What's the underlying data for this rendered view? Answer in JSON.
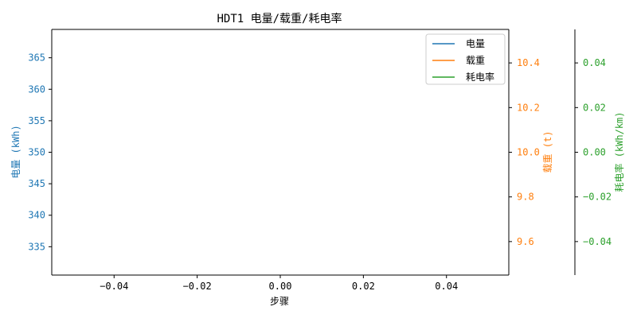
{
  "colors": {
    "c1": "#1f77b4",
    "c2": "#ff7f0e",
    "c3": "#2ca02c",
    "axis": "#000000"
  },
  "chart_data": {
    "type": "line",
    "title": "HDT1 电量/载重/耗电率",
    "xlabel": "步骤",
    "xlim": [
      -0.055,
      0.055
    ],
    "xticks": [
      "−0.04",
      "−0.02",
      "0.00",
      "0.02",
      "0.04"
    ],
    "axes": [
      {
        "ylabel": "电量 (kWh)",
        "ylim": [
          330.5,
          369.5
        ],
        "yticks": [
          "335",
          "340",
          "345",
          "350",
          "355",
          "360",
          "365"
        ],
        "color": "#1f77b4"
      },
      {
        "ylabel": "载重 (t)",
        "ylim": [
          9.45,
          10.55
        ],
        "yticks": [
          "9.6",
          "9.8",
          "10.0",
          "10.2",
          "10.4"
        ],
        "color": "#ff7f0e"
      },
      {
        "ylabel": "耗电率 (kWh/km)",
        "ylim": [
          -0.055,
          0.055
        ],
        "yticks": [
          "−0.04",
          "−0.02",
          "0.00",
          "0.02",
          "0.04"
        ],
        "color": "#2ca02c"
      }
    ],
    "series": [
      {
        "name": "电量",
        "color": "#1f77b4",
        "x": [],
        "y": []
      },
      {
        "name": "载重",
        "color": "#ff7f0e",
        "x": [],
        "y": []
      },
      {
        "name": "耗电率",
        "color": "#2ca02c",
        "x": [],
        "y": []
      }
    ],
    "legend": "top-right",
    "grid": false
  }
}
